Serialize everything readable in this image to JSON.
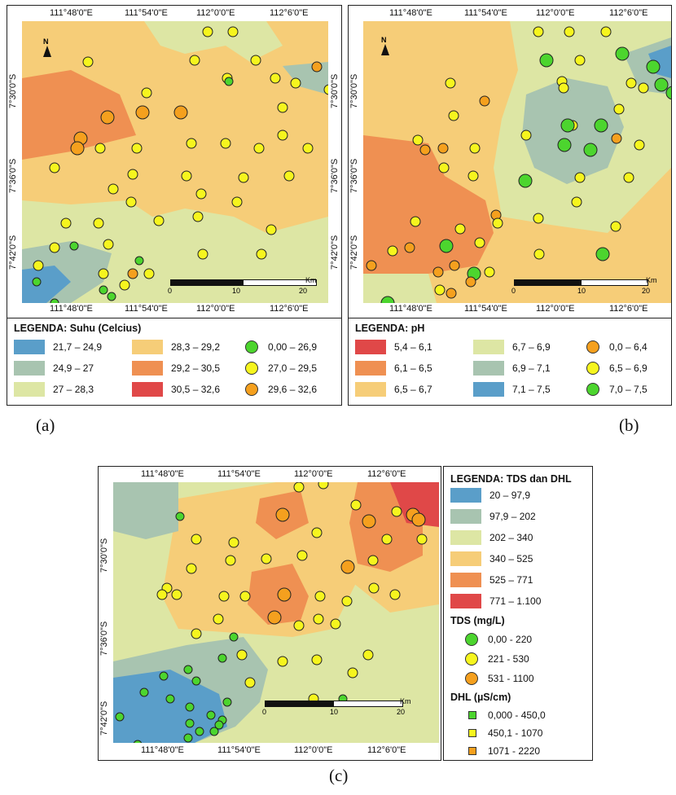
{
  "panels": {
    "a": {
      "caption": "(a)",
      "top_ticks": [
        "111°48'0\"E",
        "111°54'0\"E",
        "112°0'0\"E",
        "112°6'0\"E"
      ],
      "bottom_ticks": [
        "111°48'0\"E",
        "111°54'0\"E",
        "112°0'0\"E",
        "112°6'0\"E"
      ],
      "left_ticks": [
        "7°30'0\"S",
        "7°36'0\"S",
        "7°42'0\"S"
      ],
      "right_ticks": [
        "7°30'0\"S",
        "7°36'0\"S",
        "7°42'0\"S"
      ],
      "scale": {
        "zero": "0",
        "ten": "10",
        "twenty": "20",
        "unit": "Km"
      },
      "north": "N",
      "legend": {
        "title": "LEGENDA: Suhu (Celcius)",
        "zones": [
          {
            "label": "21,7 – 24,9",
            "color": "#5a9ec9"
          },
          {
            "label": "24,9 – 27",
            "color": "#a8c4b0"
          },
          {
            "label": "27 – 28,3",
            "color": "#dde6a4"
          },
          {
            "label": "28,3 – 29,2",
            "color": "#f6cd78"
          },
          {
            "label": "29,2 – 30,5",
            "color": "#ef9052"
          },
          {
            "label": "30,5 – 32,6",
            "color": "#e04848"
          }
        ],
        "symbols": [
          {
            "label": "0,00 – 26,9",
            "color": "#4cd52e"
          },
          {
            "label": "27,0 – 29,5",
            "color": "#f6f51e"
          },
          {
            "label": "29,6 – 32,6",
            "color": "#f5a01e"
          }
        ]
      }
    },
    "b": {
      "caption": "(b)",
      "top_ticks": [
        "111°48'0\"E",
        "111°54'0\"E",
        "112°0'0\"E",
        "112°6'0\"E"
      ],
      "bottom_ticks": [
        "111°48'0\"E",
        "111°54'0\"E",
        "112°0'0\"E",
        "112°6'0\"E"
      ],
      "left_ticks": [
        "7°30'0\"S",
        "7°36'0\"S",
        "7°42'0\"S"
      ],
      "scale": {
        "zero": "0",
        "ten": "10",
        "twenty": "20",
        "unit": "Km"
      },
      "north": "N",
      "legend": {
        "title": "LEGENDA: pH",
        "zones": [
          {
            "label": "5,4 – 6,1",
            "color": "#e04848"
          },
          {
            "label": "6,1 – 6,5",
            "color": "#ef9052"
          },
          {
            "label": "6,5 – 6,7",
            "color": "#f6cd78"
          },
          {
            "label": "6,7 – 6,9",
            "color": "#dde6a4"
          },
          {
            "label": "6,9 – 7,1",
            "color": "#a8c4b0"
          },
          {
            "label": "7,1 – 7,5",
            "color": "#5a9ec9"
          }
        ],
        "symbols": [
          {
            "label": "0,0 – 6,4",
            "color": "#f5a01e"
          },
          {
            "label": "6,5 – 6,9",
            "color": "#f6f51e"
          },
          {
            "label": "7,0 – 7,5",
            "color": "#4cd52e"
          }
        ]
      }
    },
    "c": {
      "caption": "(c)",
      "top_ticks": [
        "111°48'0\"E",
        "111°54'0\"E",
        "112°0'0\"E",
        "112°6'0\"E"
      ],
      "bottom_ticks": [
        "111°48'0\"E",
        "111°54'0\"E",
        "112°0'0\"E",
        "112°6'0\"E"
      ],
      "left_ticks": [
        "7°30'0\"S",
        "7°36'0\"S",
        "7°42'0\"S"
      ],
      "scale": {
        "zero": "0",
        "ten": "10",
        "twenty": "20",
        "unit": "Km"
      },
      "legend": {
        "title": "LEGENDA: TDS dan DHL",
        "zones": [
          {
            "label": "20 – 97,9",
            "color": "#5a9ec9"
          },
          {
            "label": "97,9 – 202",
            "color": "#a8c4b0"
          },
          {
            "label": "202 – 340",
            "color": "#dde6a4"
          },
          {
            "label": "340 – 525",
            "color": "#f6cd78"
          },
          {
            "label": "525 – 771",
            "color": "#ef9052"
          },
          {
            "label": "771 – 1.100",
            "color": "#e04848"
          }
        ],
        "tds_title": "TDS (mg/L)",
        "tds": [
          {
            "label": "0,00 - 220",
            "color": "#4cd52e"
          },
          {
            "label": "221 - 530",
            "color": "#f6f51e"
          },
          {
            "label": "531 - 1100",
            "color": "#f5a01e"
          }
        ],
        "dhl_title": "DHL (µS/cm)",
        "dhl": [
          {
            "label": "0,000 - 450,0",
            "color": "#4cd52e"
          },
          {
            "label": "450,1 - 1070",
            "color": "#f6f51e"
          },
          {
            "label": "1071 - 2220",
            "color": "#f5a01e"
          }
        ]
      }
    }
  }
}
